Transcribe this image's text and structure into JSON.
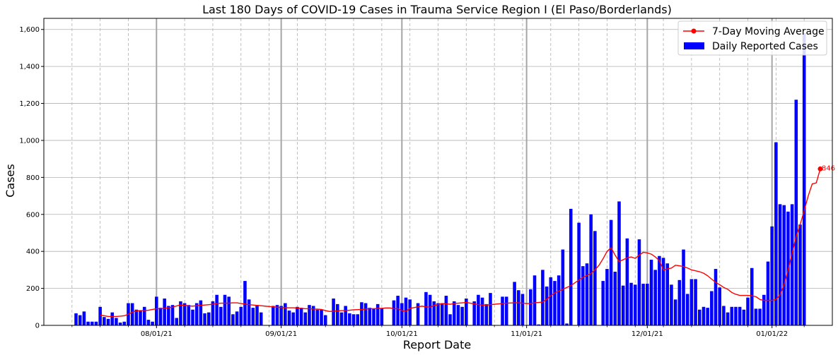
{
  "chart_data": {
    "type": "bar",
    "title": "Last 180 Days of COVID-19 Cases in Trauma Service Region I (El Paso/Borderlands)",
    "xlabel": "Report Date",
    "ylabel": "Cases",
    "ylim": [
      0,
      1660
    ],
    "xlim": [
      "2021-07-04",
      "2022-01-16"
    ],
    "grid": true,
    "legend_placement": "top-right",
    "month_ticks": [
      {
        "date": "2021-08-01",
        "label": "08/01/21"
      },
      {
        "date": "2021-09-01",
        "label": "09/01/21"
      },
      {
        "date": "2021-10-01",
        "label": "10/01/21"
      },
      {
        "date": "2021-11-01",
        "label": "11/01/21"
      },
      {
        "date": "2021-12-01",
        "label": "12/01/21"
      },
      {
        "date": "2022-01-01",
        "label": "01/01/22"
      }
    ],
    "y_ticks": [
      {
        "value": 0,
        "label": "0"
      },
      {
        "value": 200,
        "label": "200"
      },
      {
        "value": 400,
        "label": "400"
      },
      {
        "value": 600,
        "label": "600"
      },
      {
        "value": 800,
        "label": "800"
      },
      {
        "value": 1000,
        "label": "1,000"
      },
      {
        "value": 1200,
        "label": "1,200"
      },
      {
        "value": 1400,
        "label": "1,400"
      },
      {
        "value": 1600,
        "label": "1,600"
      }
    ],
    "series": [
      {
        "name": "Daily Reported Cases",
        "kind": "bar",
        "color": "#0000ff",
        "start_date": "2021-07-12",
        "values": [
          65,
          55,
          75,
          20,
          20,
          20,
          100,
          45,
          35,
          70,
          40,
          15,
          20,
          120,
          120,
          85,
          80,
          100,
          30,
          20,
          155,
          95,
          145,
          105,
          110,
          40,
          130,
          120,
          110,
          85,
          120,
          135,
          65,
          70,
          130,
          165,
          100,
          165,
          155,
          60,
          75,
          100,
          240,
          140,
          95,
          110,
          70,
          0,
          0,
          105,
          110,
          105,
          120,
          80,
          70,
          100,
          95,
          70,
          110,
          105,
          85,
          85,
          55,
          0,
          145,
          115,
          70,
          105,
          65,
          60,
          60,
          125,
          120,
          95,
          90,
          115,
          90,
          0,
          0,
          135,
          160,
          120,
          150,
          140,
          0,
          120,
          0,
          180,
          165,
          130,
          120,
          120,
          160,
          60,
          130,
          110,
          100,
          145,
          0,
          130,
          165,
          150,
          115,
          175,
          0,
          0,
          155,
          155,
          0,
          235,
          190,
          170,
          0,
          195,
          270,
          5,
          300,
          210,
          260,
          240,
          270,
          410,
          10,
          630,
          0,
          555,
          320,
          335,
          600,
          510,
          0,
          240,
          305,
          570,
          290,
          670,
          215,
          470,
          230,
          220,
          465,
          225,
          225,
          355,
          300,
          375,
          365,
          335,
          220,
          140,
          245,
          410,
          170,
          250,
          250,
          85,
          100,
          95,
          185,
          305,
          205,
          105,
          70,
          100,
          100,
          100,
          85,
          150,
          310,
          90,
          90,
          165,
          345,
          535,
          990,
          655,
          650,
          615,
          655,
          1220,
          545,
          1580
        ]
      },
      {
        "name": "7-Day Moving Average",
        "kind": "line",
        "color": "#ff0000",
        "start_date": "2021-07-18",
        "end_label": "846",
        "values": [
          55,
          52,
          48,
          48,
          48,
          50,
          52,
          60,
          72,
          78,
          80,
          80,
          82,
          86,
          90,
          90,
          92,
          95,
          98,
          105,
          110,
          108,
          105,
          104,
          106,
          108,
          110,
          112,
          114,
          118,
          120,
          120,
          120,
          122,
          122,
          118,
          115,
          112,
          110,
          108,
          106,
          104,
          102,
          100,
          98,
          96,
          95,
          95,
          95,
          94,
          92,
          90,
          90,
          88,
          88,
          86,
          80,
          75,
          76,
          78,
          80,
          80,
          82,
          84,
          85,
          86,
          88,
          90,
          90,
          92,
          92,
          94,
          94,
          90,
          90,
          80,
          75,
          92,
          96,
          100,
          104,
          100,
          98,
          108,
          112,
          118,
          116,
          114,
          118,
          120,
          122,
          124,
          120,
          116,
          112,
          110,
          110,
          112,
          114,
          116,
          118,
          120,
          121,
          122,
          122,
          120,
          118,
          118,
          122,
          124,
          126,
          140,
          160,
          175,
          185,
          195,
          205,
          215,
          230,
          245,
          260,
          270,
          280,
          300,
          325,
          360,
          400,
          420,
          380,
          345,
          355,
          365,
          370,
          362,
          380,
          395,
          392,
          385,
          370,
          350,
          300,
          305,
          310,
          325,
          322,
          318,
          310,
          300,
          295,
          290,
          282,
          268,
          250,
          232,
          220,
          205,
          195,
          178,
          168,
          162,
          162,
          162,
          160,
          155,
          140,
          135,
          135,
          135,
          140,
          165,
          220,
          300,
          390,
          480,
          545,
          620,
          700,
          765,
          770,
          846
        ]
      }
    ]
  }
}
